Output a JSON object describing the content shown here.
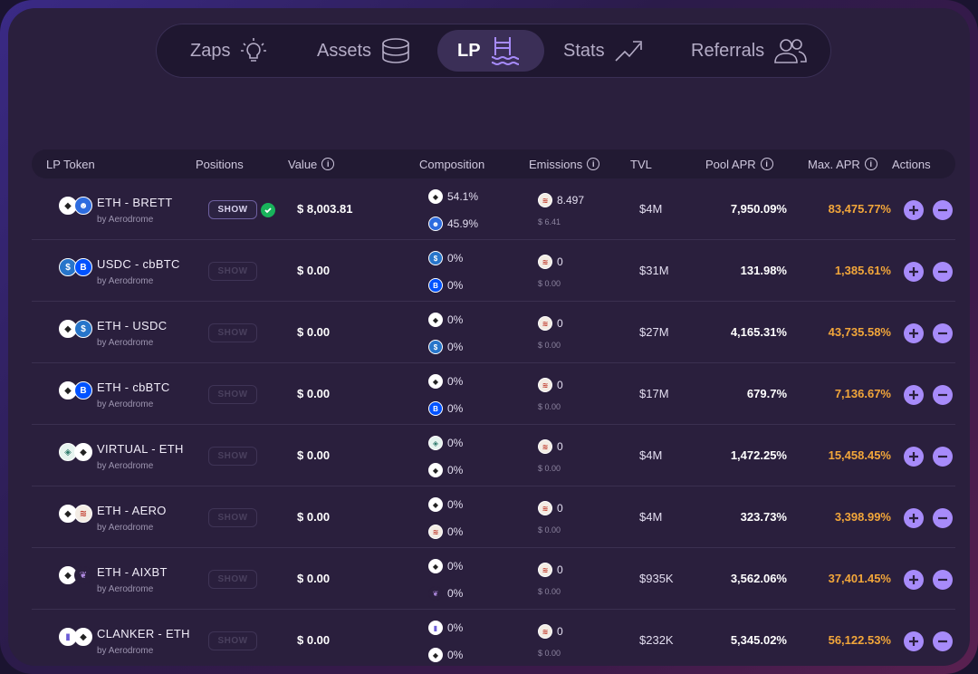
{
  "nav": {
    "items": [
      {
        "label": "Zaps",
        "icon": "lightbulb-icon"
      },
      {
        "label": "Assets",
        "icon": "coins-stack-icon"
      },
      {
        "label": "LP",
        "icon": "pool-ladder-icon"
      },
      {
        "label": "Stats",
        "icon": "trend-up-icon"
      },
      {
        "label": "Referrals",
        "icon": "users-icon"
      }
    ],
    "active": "LP"
  },
  "table": {
    "headers": {
      "lp_token": "LP Token",
      "positions": "Positions",
      "value": "Value",
      "composition": "Composition",
      "emissions": "Emissions",
      "tvl": "TVL",
      "pool_apr": "Pool APR",
      "max_apr": "Max. APR",
      "actions": "Actions"
    },
    "show_label": "SHOW",
    "rows": [
      {
        "pair": "ETH - BRETT",
        "sub": "by Aerodrome",
        "coins": [
          "eth",
          "brett"
        ],
        "show_active": true,
        "value": "$ 8,003.81",
        "comp": [
          {
            "coin": "eth",
            "pct": "54.1%"
          },
          {
            "coin": "brett",
            "pct": "45.9%"
          }
        ],
        "emission": "8.497",
        "emission_usd": "$ 6.41",
        "tvl": "$4M",
        "pool_apr": "7,950.09%",
        "max_apr": "83,475.77%"
      },
      {
        "pair": "USDC - cbBTC",
        "sub": "by Aerodrome",
        "coins": [
          "usdc",
          "cbbtc"
        ],
        "show_active": false,
        "value": "$ 0.00",
        "comp": [
          {
            "coin": "usdc",
            "pct": "0%"
          },
          {
            "coin": "cbbtc",
            "pct": "0%"
          }
        ],
        "emission": "0",
        "emission_usd": "$ 0.00",
        "tvl": "$31M",
        "pool_apr": "131.98%",
        "max_apr": "1,385.61%"
      },
      {
        "pair": "ETH - USDC",
        "sub": "by Aerodrome",
        "coins": [
          "eth",
          "usdc"
        ],
        "show_active": false,
        "value": "$ 0.00",
        "comp": [
          {
            "coin": "eth",
            "pct": "0%"
          },
          {
            "coin": "usdc",
            "pct": "0%"
          }
        ],
        "emission": "0",
        "emission_usd": "$ 0.00",
        "tvl": "$27M",
        "pool_apr": "4,165.31%",
        "max_apr": "43,735.58%"
      },
      {
        "pair": "ETH - cbBTC",
        "sub": "by Aerodrome",
        "coins": [
          "eth",
          "cbbtc"
        ],
        "show_active": false,
        "value": "$ 0.00",
        "comp": [
          {
            "coin": "eth",
            "pct": "0%"
          },
          {
            "coin": "cbbtc",
            "pct": "0%"
          }
        ],
        "emission": "0",
        "emission_usd": "$ 0.00",
        "tvl": "$17M",
        "pool_apr": "679.7%",
        "max_apr": "7,136.67%"
      },
      {
        "pair": "VIRTUAL - ETH",
        "sub": "by Aerodrome",
        "coins": [
          "virtual",
          "eth"
        ],
        "show_active": false,
        "value": "$ 0.00",
        "comp": [
          {
            "coin": "virtual",
            "pct": "0%"
          },
          {
            "coin": "eth",
            "pct": "0%"
          }
        ],
        "emission": "0",
        "emission_usd": "$ 0.00",
        "tvl": "$4M",
        "pool_apr": "1,472.25%",
        "max_apr": "15,458.45%"
      },
      {
        "pair": "ETH - AERO",
        "sub": "by Aerodrome",
        "coins": [
          "eth",
          "aero"
        ],
        "show_active": false,
        "value": "$ 0.00",
        "comp": [
          {
            "coin": "eth",
            "pct": "0%"
          },
          {
            "coin": "aero",
            "pct": "0%"
          }
        ],
        "emission": "0",
        "emission_usd": "$ 0.00",
        "tvl": "$4M",
        "pool_apr": "323.73%",
        "max_apr": "3,398.99%"
      },
      {
        "pair": "ETH - AIXBT",
        "sub": "by Aerodrome",
        "coins": [
          "eth",
          "aixbt"
        ],
        "show_active": false,
        "value": "$ 0.00",
        "comp": [
          {
            "coin": "eth",
            "pct": "0%"
          },
          {
            "coin": "aixbt",
            "pct": "0%"
          }
        ],
        "emission": "0",
        "emission_usd": "$ 0.00",
        "tvl": "$935K",
        "pool_apr": "3,562.06%",
        "max_apr": "37,401.45%"
      },
      {
        "pair": "CLANKER - ETH",
        "sub": "by Aerodrome",
        "coins": [
          "clanker",
          "eth"
        ],
        "show_active": false,
        "value": "$ 0.00",
        "comp": [
          {
            "coin": "clanker",
            "pct": "0%"
          },
          {
            "coin": "eth",
            "pct": "0%"
          }
        ],
        "emission": "0",
        "emission_usd": "$ 0.00",
        "tvl": "$232K",
        "pool_apr": "5,345.02%",
        "max_apr": "56,122.53%"
      }
    ]
  },
  "colors": {
    "accent": "#a78bfa",
    "max_apr": "#f2a63a",
    "check": "#18b35b",
    "background": "#2a1f3d"
  }
}
